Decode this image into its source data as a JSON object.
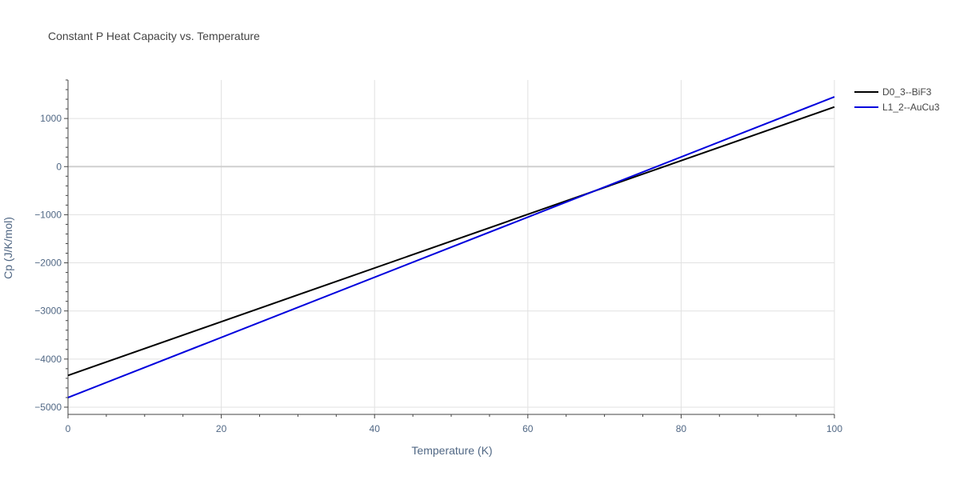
{
  "chart_data": {
    "type": "line",
    "title": "Constant P Heat Capacity vs. Temperature",
    "xlabel": "Temperature (K)",
    "ylabel": "Cp (J/K/mol)",
    "xlim": [
      0,
      100
    ],
    "ylim": [
      -5150,
      1800
    ],
    "x_ticks": [
      0,
      20,
      40,
      60,
      80,
      100
    ],
    "y_ticks": [
      -5000,
      -4000,
      -3000,
      -2000,
      -1000,
      0,
      1000
    ],
    "y_tick_labels": [
      "−5000",
      "−4000",
      "−3000",
      "−2000",
      "−1000",
      "0",
      "1000"
    ],
    "grid": true,
    "legend_position": "top-right",
    "series": [
      {
        "name": "D0_3--BiF3",
        "color": "#000000",
        "x": [
          0,
          100
        ],
        "y": [
          -4340,
          1240
        ]
      },
      {
        "name": "L1_2--AuCu3",
        "color": "#0000dd",
        "x": [
          0,
          100
        ],
        "y": [
          -4800,
          1450
        ]
      }
    ]
  }
}
